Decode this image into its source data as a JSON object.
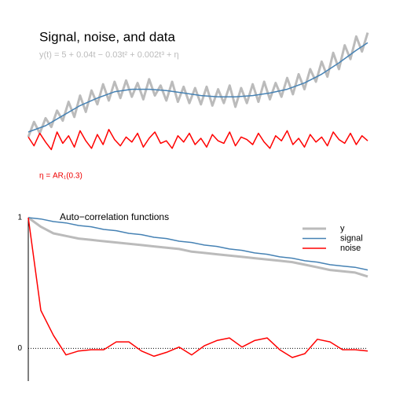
{
  "chart_data": [
    {
      "type": "line",
      "title": "Signal, noise, and data",
      "subtitle": "y(t) = 5 + 0.04t − 0.03t² + 0.002t³ + η",
      "annotation": "η = AR₁(0.3)",
      "x": [
        0,
        1,
        2,
        3,
        4,
        5,
        6,
        7,
        8,
        9,
        10,
        11,
        12,
        13,
        14,
        15,
        16,
        17,
        18,
        19,
        20,
        21,
        22,
        23,
        24,
        25,
        26,
        27,
        28,
        29,
        30,
        31,
        32,
        33,
        34,
        35,
        36,
        37,
        38,
        39,
        40,
        41,
        42,
        43,
        44,
        45,
        46,
        47,
        48,
        49,
        50,
        51,
        52,
        53,
        54,
        55,
        56,
        57,
        58,
        59
      ],
      "xlim": [
        0,
        59
      ],
      "ylim": [
        0,
        10
      ],
      "series": [
        {
          "name": "y",
          "color": "#bbbbbb",
          "values": [
            1.6,
            2.8,
            1.9,
            3.1,
            2.4,
            3.7,
            2.9,
            4.4,
            3.2,
            4.9,
            3.6,
            5.3,
            4.2,
            5.8,
            4.5,
            6.0,
            4.7,
            6.1,
            4.8,
            5.9,
            4.6,
            6.2,
            4.9,
            5.7,
            4.5,
            6.0,
            4.4,
            5.6,
            4.3,
            5.5,
            4.2,
            5.6,
            4.1,
            5.4,
            4.3,
            5.7,
            4.0,
            5.5,
            4.3,
            5.8,
            4.4,
            6.0,
            4.6,
            5.9,
            4.8,
            6.3,
            5.0,
            6.6,
            5.4,
            7.0,
            6.0,
            7.6,
            6.4,
            8.3,
            7.0,
            8.9,
            7.8,
            9.6,
            8.4,
            9.9
          ]
        },
        {
          "name": "signal",
          "color": "#4682b4",
          "x": [
            0,
            3,
            6,
            9,
            12,
            15,
            18,
            21,
            24,
            27,
            30,
            33,
            36,
            39,
            42,
            45,
            48,
            51,
            54,
            57,
            59
          ],
          "values": [
            2.0,
            2.5,
            3.3,
            4.1,
            4.7,
            5.2,
            5.4,
            5.4,
            5.3,
            5.1,
            4.9,
            4.8,
            4.8,
            4.9,
            5.1,
            5.4,
            5.9,
            6.6,
            7.5,
            8.5,
            9.1
          ]
        },
        {
          "name": "noise",
          "color": "#ff0000",
          "values": [
            1.6,
            0.9,
            1.9,
            1.2,
            0.6,
            2.0,
            1.1,
            1.7,
            0.8,
            2.1,
            1.3,
            0.7,
            1.8,
            1.0,
            2.2,
            1.4,
            0.9,
            1.6,
            1.2,
            1.9,
            0.8,
            1.5,
            2.0,
            1.1,
            1.3,
            0.7,
            1.7,
            1.2,
            1.9,
            1.0,
            1.5,
            0.8,
            1.8,
            1.3,
            1.1,
            2.0,
            0.9,
            1.6,
            1.4,
            1.0,
            1.9,
            1.2,
            0.7,
            1.7,
            1.3,
            2.1,
            1.0,
            1.5,
            0.8,
            1.8,
            1.2,
            1.6,
            0.9,
            2.0,
            1.4,
            1.1,
            1.9,
            1.0,
            1.7,
            1.3
          ]
        }
      ]
    },
    {
      "type": "line",
      "title": "Auto−correlation functions",
      "legend": "top-right",
      "x": [
        0,
        1,
        2,
        3,
        4,
        5,
        6,
        7,
        8,
        9,
        10,
        11,
        12,
        13,
        14,
        15,
        16,
        17,
        18,
        19,
        20,
        21,
        22,
        23,
        24,
        25,
        26,
        27
      ],
      "xlim": [
        0,
        27
      ],
      "ylim": [
        -0.25,
        1
      ],
      "yticks": [
        0,
        1
      ],
      "series": [
        {
          "name": "y",
          "color": "#bbbbbb",
          "values": [
            1,
            0.93,
            0.88,
            0.86,
            0.84,
            0.83,
            0.82,
            0.81,
            0.8,
            0.79,
            0.78,
            0.77,
            0.76,
            0.74,
            0.73,
            0.72,
            0.71,
            0.7,
            0.69,
            0.68,
            0.67,
            0.66,
            0.64,
            0.62,
            0.6,
            0.59,
            0.58,
            0.55
          ]
        },
        {
          "name": "signal",
          "color": "#4682b4",
          "values": [
            1,
            0.99,
            0.97,
            0.96,
            0.94,
            0.93,
            0.91,
            0.9,
            0.88,
            0.87,
            0.85,
            0.84,
            0.82,
            0.81,
            0.79,
            0.78,
            0.76,
            0.75,
            0.73,
            0.72,
            0.7,
            0.69,
            0.67,
            0.66,
            0.64,
            0.63,
            0.62,
            0.6
          ]
        },
        {
          "name": "noise",
          "color": "#ff0000",
          "values": [
            1,
            0.29,
            0.1,
            -0.05,
            -0.02,
            -0.01,
            -0.01,
            0.05,
            0.05,
            -0.02,
            -0.06,
            -0.03,
            0.01,
            -0.05,
            0.02,
            0.06,
            0.08,
            0.01,
            0.06,
            0.08,
            -0.01,
            -0.07,
            -0.04,
            0.07,
            0.05,
            -0.01,
            -0.01,
            -0.02
          ]
        }
      ]
    }
  ]
}
